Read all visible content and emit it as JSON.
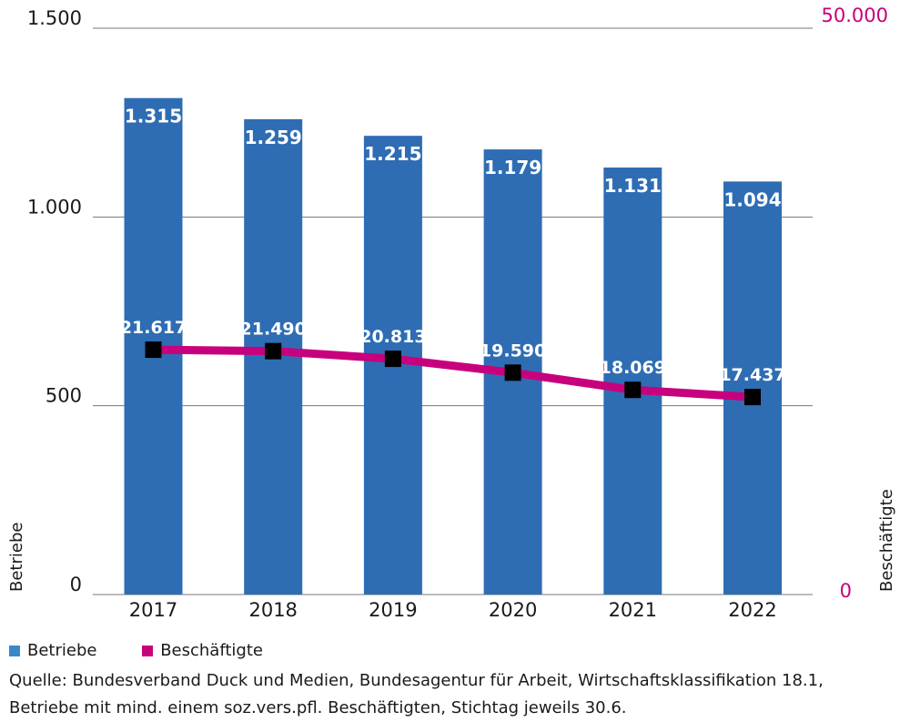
{
  "colors": {
    "bar": "#2e6db4",
    "line": "#c7007d",
    "marker": "#000000",
    "right_axis": "#c7007d",
    "grid": "#777777"
  },
  "chart_data": {
    "type": "bar",
    "categories": [
      "2017",
      "2018",
      "2019",
      "2020",
      "2021",
      "2022"
    ],
    "series": [
      {
        "name": "Betriebe",
        "type": "bar",
        "axis": "left",
        "values": [
          1315,
          1259,
          1215,
          1179,
          1131,
          1094
        ],
        "labels": [
          "1.315",
          "1.259",
          "1.215",
          "1.179",
          "1.131",
          "1.094"
        ]
      },
      {
        "name": "Beschäftigte",
        "type": "line",
        "axis": "right",
        "values": [
          21617,
          21490,
          20813,
          19590,
          18069,
          17437
        ],
        "labels": [
          "21.617",
          "21.490",
          "20.813",
          "19.590",
          "18.069",
          "17.437"
        ]
      }
    ],
    "y_left": {
      "label": "Betriebe",
      "range": [
        0,
        1500
      ],
      "ticks": [
        0,
        500,
        1000,
        1500
      ],
      "tick_labels": [
        "0",
        "500",
        "1.000",
        "1.500"
      ]
    },
    "y_right": {
      "label": "Beschäftigte",
      "range": [
        0,
        50000
      ],
      "tick_labels": [
        "0",
        "50.000"
      ]
    },
    "grid": true,
    "legend_position": "bottom-left"
  },
  "legend": [
    {
      "label": "Betriebe",
      "color": "#2e6db4"
    },
    {
      "label": "Beschäftigte",
      "color": "#c7007d"
    }
  ],
  "source": {
    "line1": "Quelle: Bundesverband Duck und Medien, Bundesagentur für Arbeit, Wirtschaftsklassifikation 18.1,",
    "line2": "Betriebe mit mind. einem soz.vers.pfl. Beschäftigten, Stichtag jeweils 30.6."
  }
}
